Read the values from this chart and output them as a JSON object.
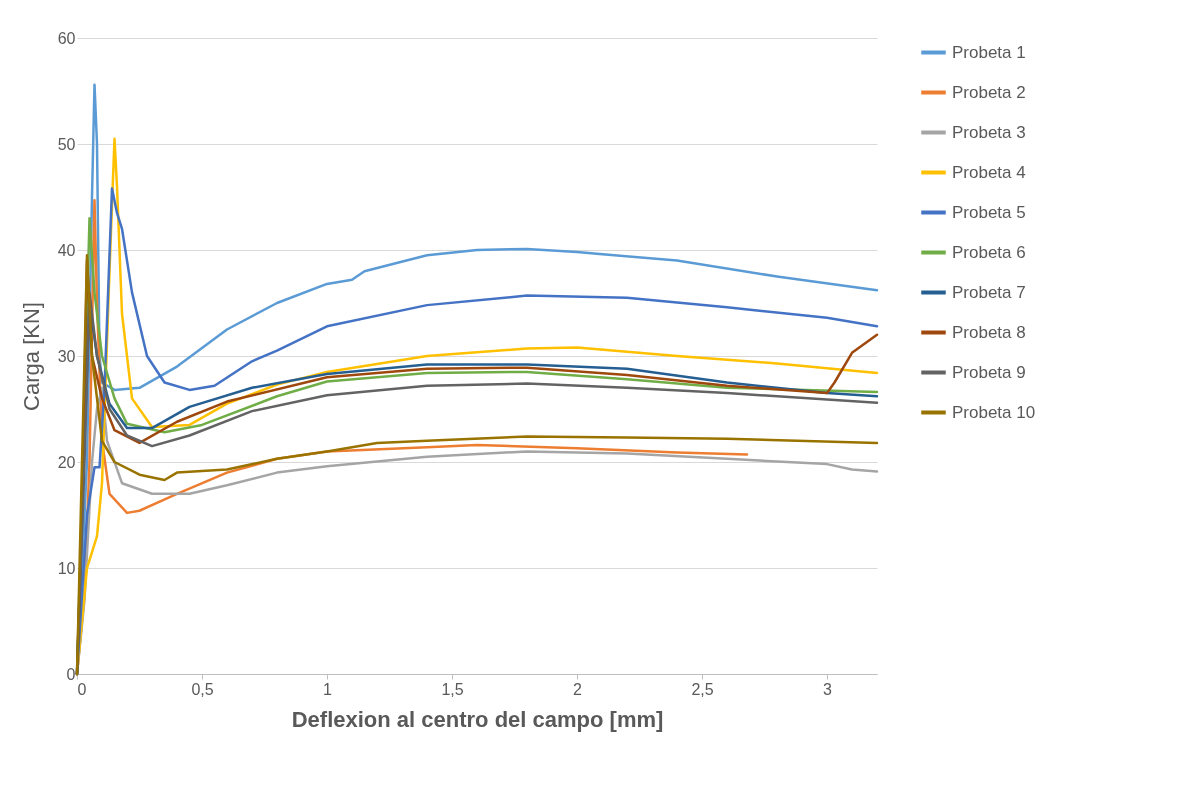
{
  "chart_data": {
    "type": "line",
    "xlabel": "Deflexion al centro del campo  [mm]",
    "ylabel": "Carga [KN]",
    "xlim": [
      0,
      3.2
    ],
    "xticks": [
      0,
      {
        "value": 0.5,
        "label": "0,5"
      },
      1,
      {
        "value": 1.5,
        "label": "1,5"
      },
      2,
      {
        "value": 2.5,
        "label": "2,5"
      },
      3
    ],
    "ylim": [
      0,
      60
    ],
    "yticks": [
      0,
      10,
      20,
      30,
      40,
      50,
      60
    ],
    "grid": "y",
    "legend": "right",
    "marker": "none",
    "line_style": "solid",
    "series": [
      {
        "name": "Probeta 1",
        "color": "#5b9bd5",
        "x": [
          0,
          0.04,
          0.06,
          0.07,
          0.08,
          0.09,
          0.1,
          0.15,
          0.25,
          0.4,
          0.6,
          0.8,
          1.0,
          1.1,
          1.15,
          1.4,
          1.6,
          1.8,
          2.0,
          2.4,
          2.8,
          3.2
        ],
        "values": [
          0,
          20,
          45,
          55.6,
          50,
          30,
          27.5,
          26.8,
          27,
          29,
          32.5,
          35,
          36.8,
          37.2,
          38,
          39.5,
          40,
          40.1,
          39.8,
          39,
          37.5,
          36.2
        ]
      },
      {
        "name": "Probeta 2",
        "color": "#ed7d31",
        "x": [
          0,
          0.03,
          0.05,
          0.07,
          0.08,
          0.1,
          0.13,
          0.2,
          0.25,
          0.4,
          0.6,
          0.8,
          1.0,
          1.4,
          1.6,
          2.0,
          2.4,
          2.68
        ],
        "values": [
          0,
          7.5,
          20,
          44.7,
          35,
          22,
          17,
          15.2,
          15.4,
          17,
          19,
          20.3,
          21,
          21.4,
          21.6,
          21.3,
          20.9,
          20.7
        ]
      },
      {
        "name": "Probeta 3",
        "color": "#a5a5a5",
        "x": [
          0,
          0.03,
          0.06,
          0.08,
          0.1,
          0.12,
          0.18,
          0.3,
          0.45,
          0.6,
          0.8,
          1.0,
          1.4,
          1.8,
          2.2,
          2.6,
          3.0,
          3.1,
          3.2
        ],
        "values": [
          0,
          7,
          20,
          25,
          27,
          22,
          18,
          17,
          17,
          17.8,
          19,
          19.6,
          20.5,
          21,
          20.8,
          20.3,
          19.8,
          19.3,
          19.1
        ]
      },
      {
        "name": "Probeta 4",
        "color": "#ffc000",
        "x": [
          0,
          0.04,
          0.08,
          0.1,
          0.13,
          0.15,
          0.16,
          0.18,
          0.22,
          0.3,
          0.45,
          0.6,
          0.8,
          1.0,
          1.4,
          1.8,
          2.0,
          2.4,
          2.8,
          3.2
        ],
        "values": [
          0,
          10,
          13,
          18,
          38,
          50.5,
          46,
          34,
          26,
          23.3,
          23.5,
          25.5,
          27.3,
          28.5,
          30,
          30.7,
          30.8,
          30,
          29.3,
          28.4
        ]
      },
      {
        "name": "Probeta 5",
        "color": "#4472c4",
        "x": [
          0,
          0.04,
          0.07,
          0.09,
          0.11,
          0.14,
          0.16,
          0.18,
          0.22,
          0.28,
          0.35,
          0.45,
          0.55,
          0.7,
          0.8,
          1.0,
          1.4,
          1.8,
          2.2,
          2.6,
          3.0,
          3.2
        ],
        "values": [
          0,
          15,
          19.5,
          19.5,
          27,
          45.8,
          43.5,
          42,
          36,
          30,
          27.5,
          26.8,
          27.2,
          29.5,
          30.5,
          32.8,
          34.8,
          35.7,
          35.5,
          34.6,
          33.6,
          32.8
        ]
      },
      {
        "name": "Probeta 6",
        "color": "#70ad47",
        "x": [
          0,
          0.03,
          0.05,
          0.07,
          0.1,
          0.15,
          0.2,
          0.35,
          0.5,
          0.8,
          1.0,
          1.4,
          1.8,
          2.2,
          2.6,
          3.2
        ],
        "values": [
          0,
          25,
          43,
          36,
          30,
          26,
          23.6,
          22.8,
          23.5,
          26.2,
          27.6,
          28.4,
          28.5,
          27.8,
          27,
          26.6
        ]
      },
      {
        "name": "Probeta 7",
        "color": "#255e91",
        "x": [
          0,
          0.03,
          0.05,
          0.08,
          0.13,
          0.2,
          0.3,
          0.45,
          0.7,
          1.0,
          1.4,
          1.8,
          2.2,
          2.6,
          3.0,
          3.2
        ],
        "values": [
          0,
          22,
          35,
          30,
          25.5,
          23.2,
          23.2,
          25.2,
          27,
          28.3,
          29.2,
          29.2,
          28.8,
          27.5,
          26.5,
          26.2
        ]
      },
      {
        "name": "Probeta 8",
        "color": "#9e480e",
        "x": [
          0,
          0.02,
          0.04,
          0.06,
          0.1,
          0.15,
          0.25,
          0.4,
          0.6,
          1.0,
          1.4,
          1.8,
          2.2,
          2.6,
          3.0,
          3.03,
          3.1,
          3.2
        ],
        "values": [
          0,
          15,
          39,
          30,
          26,
          23,
          21.8,
          23.8,
          25.7,
          28,
          28.8,
          28.9,
          28.2,
          27.2,
          26.5,
          27.5,
          30.3,
          32
        ]
      },
      {
        "name": "Probeta 9",
        "color": "#636363",
        "x": [
          0,
          0.03,
          0.05,
          0.08,
          0.13,
          0.2,
          0.3,
          0.45,
          0.7,
          1.0,
          1.4,
          1.8,
          2.2,
          2.6,
          3.2
        ],
        "values": [
          0,
          20,
          36,
          30,
          25,
          22.5,
          21.5,
          22.5,
          24.8,
          26.3,
          27.2,
          27.4,
          27,
          26.5,
          25.6
        ]
      },
      {
        "name": "Probeta 10",
        "color": "#997300",
        "x": [
          0,
          0.02,
          0.04,
          0.06,
          0.1,
          0.15,
          0.25,
          0.35,
          0.4,
          0.6,
          0.8,
          1.0,
          1.2,
          1.4,
          1.8,
          2.2,
          2.6,
          3.2
        ],
        "values": [
          0,
          20,
          39.5,
          30,
          22,
          20,
          18.8,
          18.3,
          19,
          19.3,
          20.3,
          21,
          21.8,
          22,
          22.4,
          22.3,
          22.2,
          21.8
        ]
      }
    ]
  }
}
